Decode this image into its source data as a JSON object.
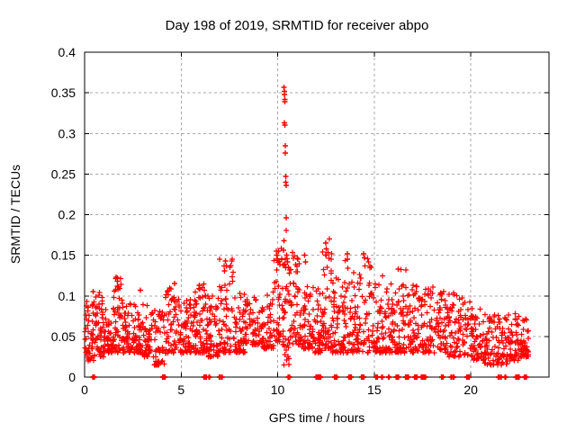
{
  "window": {
    "background": "#ffffff"
  },
  "chart_data": {
    "type": "scatter",
    "title": "Day 198 of 2019, SRMTID for receiver abpo",
    "xlabel": "GPS time / hours",
    "ylabel": "SRMTID / TECUs",
    "xlim": [
      0,
      24.05
    ],
    "ylim": [
      0,
      0.4
    ],
    "xticks": [
      0,
      5,
      10,
      15,
      20
    ],
    "yticks": [
      0,
      0.05,
      0.1,
      0.15,
      0.2,
      0.25,
      0.3,
      0.35,
      0.4
    ],
    "xtick_labels": [
      "0",
      "5",
      "10",
      "15",
      "20"
    ],
    "ytick_labels": [
      "0",
      "0.05",
      "0.1",
      "0.15",
      "0.2",
      "0.25",
      "0.3",
      "0.35",
      "0.4"
    ],
    "grid": "dashed-major",
    "legend": "none",
    "marker": {
      "shape": "plus",
      "size": 7
    },
    "colors": {
      "marker": "#ff0000",
      "grid": "#a8a8a8",
      "axis": "#000000",
      "text": "#000000",
      "background": "#ffffff"
    },
    "spike_and_outlier_points": [
      [
        10.32,
        0.357
      ],
      [
        10.35,
        0.352
      ],
      [
        10.34,
        0.348
      ],
      [
        10.36,
        0.342
      ],
      [
        10.37,
        0.339
      ],
      [
        10.35,
        0.313
      ],
      [
        10.36,
        0.31
      ],
      [
        10.4,
        0.285
      ],
      [
        10.39,
        0.276
      ],
      [
        10.42,
        0.247
      ],
      [
        10.41,
        0.24
      ],
      [
        10.43,
        0.236
      ],
      [
        10.45,
        0.196
      ],
      [
        10.33,
        0.168
      ],
      [
        10.3,
        0.156
      ],
      [
        10.47,
        0.15
      ],
      [
        10.5,
        0.142
      ],
      [
        10.28,
        0.138
      ],
      [
        10.55,
        0.135
      ],
      [
        10.6,
        0.128
      ],
      [
        9.95,
        0.15
      ],
      [
        10.05,
        0.155
      ],
      [
        11.4,
        0.15
      ],
      [
        11.45,
        0.142
      ],
      [
        1.7,
        0.122
      ],
      [
        1.71,
        0.118
      ],
      [
        1.69,
        0.112
      ],
      [
        1.72,
        0.108
      ],
      [
        12.5,
        0.165
      ],
      [
        12.52,
        0.158
      ],
      [
        12.48,
        0.15
      ],
      [
        13.6,
        0.152
      ],
      [
        13.62,
        0.145
      ],
      [
        14.45,
        0.152
      ],
      [
        14.5,
        0.147
      ],
      [
        7.3,
        0.143
      ],
      [
        7.35,
        0.137
      ],
      [
        7.25,
        0.131
      ],
      [
        16.25,
        0.133
      ],
      [
        4.65,
        0.115
      ],
      [
        5.95,
        0.113
      ],
      [
        2.9,
        0.107
      ],
      [
        0.45,
        0.105
      ]
    ],
    "zero_value_point_hours": [
      0.45,
      0.5,
      4.05,
      4.15,
      6.2,
      6.3,
      6.45,
      7.0,
      7.1,
      10.55,
      10.6,
      12.0,
      12.05,
      12.1,
      12.15,
      12.2,
      12.95,
      13.0,
      13.05,
      13.7,
      13.8,
      14.35,
      14.4,
      14.45,
      15.1,
      15.15,
      15.4,
      15.75,
      16.15,
      16.25,
      16.65,
      16.7,
      16.75,
      17.1,
      17.15,
      17.2,
      17.45,
      17.55,
      17.65,
      18.5,
      18.55,
      19.0,
      19.1,
      19.8,
      19.85,
      19.9,
      21.45,
      21.55,
      21.8,
      22.35,
      22.4,
      22.45,
      22.5,
      22.8,
      22.85
    ],
    "noise_band_segments_h0_h1_lo_hi_n": [
      [
        0.0,
        0.5,
        0.02,
        0.095,
        48
      ],
      [
        0.5,
        1.0,
        0.025,
        0.105,
        50
      ],
      [
        1.0,
        1.5,
        0.03,
        0.085,
        52
      ],
      [
        1.5,
        1.9,
        0.03,
        0.125,
        45
      ],
      [
        1.9,
        2.4,
        0.03,
        0.1,
        50
      ],
      [
        2.4,
        3.0,
        0.03,
        0.09,
        55
      ],
      [
        3.0,
        3.6,
        0.025,
        0.09,
        52
      ],
      [
        3.6,
        4.2,
        0.015,
        0.085,
        50
      ],
      [
        4.2,
        4.8,
        0.03,
        0.115,
        52
      ],
      [
        4.8,
        5.4,
        0.03,
        0.1,
        54
      ],
      [
        5.4,
        5.9,
        0.03,
        0.105,
        50
      ],
      [
        5.9,
        6.4,
        0.03,
        0.115,
        52
      ],
      [
        6.4,
        6.9,
        0.025,
        0.1,
        50
      ],
      [
        6.9,
        7.7,
        0.03,
        0.145,
        62
      ],
      [
        7.7,
        8.3,
        0.03,
        0.105,
        55
      ],
      [
        8.3,
        9.2,
        0.04,
        0.1,
        65
      ],
      [
        9.2,
        9.8,
        0.035,
        0.11,
        50
      ],
      [
        9.8,
        10.3,
        0.04,
        0.16,
        45
      ],
      [
        10.3,
        10.6,
        0.015,
        0.19,
        30
      ],
      [
        10.6,
        11.2,
        0.04,
        0.16,
        55
      ],
      [
        11.2,
        11.8,
        0.035,
        0.125,
        52
      ],
      [
        11.8,
        12.3,
        0.03,
        0.115,
        48
      ],
      [
        12.3,
        12.8,
        0.035,
        0.17,
        50
      ],
      [
        12.8,
        13.4,
        0.03,
        0.125,
        52
      ],
      [
        13.4,
        14.0,
        0.03,
        0.155,
        52
      ],
      [
        14.0,
        14.9,
        0.03,
        0.155,
        70
      ],
      [
        14.9,
        15.5,
        0.03,
        0.125,
        52
      ],
      [
        15.5,
        16.1,
        0.03,
        0.115,
        52
      ],
      [
        16.1,
        16.7,
        0.03,
        0.135,
        52
      ],
      [
        16.7,
        17.3,
        0.03,
        0.115,
        52
      ],
      [
        17.3,
        18.0,
        0.03,
        0.11,
        55
      ],
      [
        18.0,
        18.7,
        0.03,
        0.115,
        55
      ],
      [
        18.7,
        19.4,
        0.025,
        0.105,
        55
      ],
      [
        19.4,
        20.1,
        0.025,
        0.1,
        52
      ],
      [
        20.1,
        20.7,
        0.02,
        0.09,
        50
      ],
      [
        20.7,
        21.3,
        0.015,
        0.08,
        48
      ],
      [
        21.3,
        21.9,
        0.015,
        0.078,
        46
      ],
      [
        21.9,
        22.5,
        0.02,
        0.08,
        48
      ],
      [
        22.5,
        23.05,
        0.025,
        0.075,
        46
      ]
    ],
    "random_seed": 1998
  }
}
